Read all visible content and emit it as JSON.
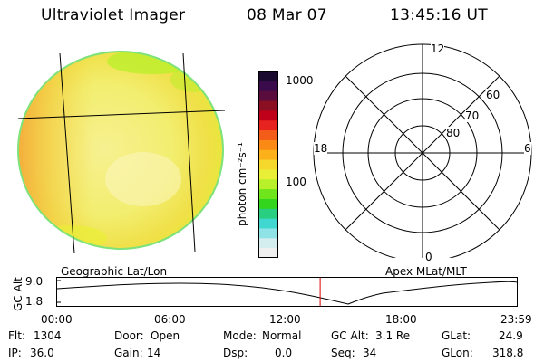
{
  "header": {
    "instrument": "Ultraviolet Imager",
    "date": "08 Mar 07",
    "time": "13:45:16 UT"
  },
  "colorbar": {
    "unit_label": "photon cm⁻²s⁻¹",
    "ticks": [
      "1000",
      "100"
    ],
    "colors": [
      "#1a0a2e",
      "#3a0b4a",
      "#5a0c3c",
      "#8a0f22",
      "#c0001b",
      "#e6231f",
      "#f45c1a",
      "#fb8a14",
      "#fcb11a",
      "#f6d72c",
      "#e9ee36",
      "#b8f02a",
      "#6fe61c",
      "#33d61c",
      "#29cf80",
      "#40d7d0",
      "#8fe3e6",
      "#d4eef0",
      "#f0f0f0"
    ]
  },
  "polar_plot": {
    "labels": {
      "top": "12",
      "bottom": "0",
      "left": "18",
      "right": "6",
      "ring60": "60",
      "ring70": "70",
      "ring80": "80"
    }
  },
  "altitude_strip": {
    "left_label": "Geographic Lat/Lon",
    "right_label": "Apex MLat/MLT",
    "y_label": "GC Alt",
    "y_ticks": [
      "9.0",
      "1.8"
    ],
    "x_ticks": [
      "00:00",
      "06:00",
      "12:00",
      "18:00",
      "23:59"
    ],
    "current_time_fraction": 0.573,
    "marker_color": "#dd0000"
  },
  "metadata": [
    {
      "key": "Flt:",
      "value": "1304"
    },
    {
      "key": "IP:",
      "value": "36.0"
    },
    {
      "key": "Door:",
      "value": "Open"
    },
    {
      "key": "Gain:",
      "value": "14"
    },
    {
      "key": "Mode:",
      "value": "Normal"
    },
    {
      "key": "Dsp:",
      "value": "0.0"
    },
    {
      "key": "GC Alt:",
      "value": "3.1 Re"
    },
    {
      "key": "Seq:",
      "value": "34"
    },
    {
      "key": "GLat:",
      "value": "24.9"
    },
    {
      "key": "GLon:",
      "value": "318.8"
    }
  ]
}
